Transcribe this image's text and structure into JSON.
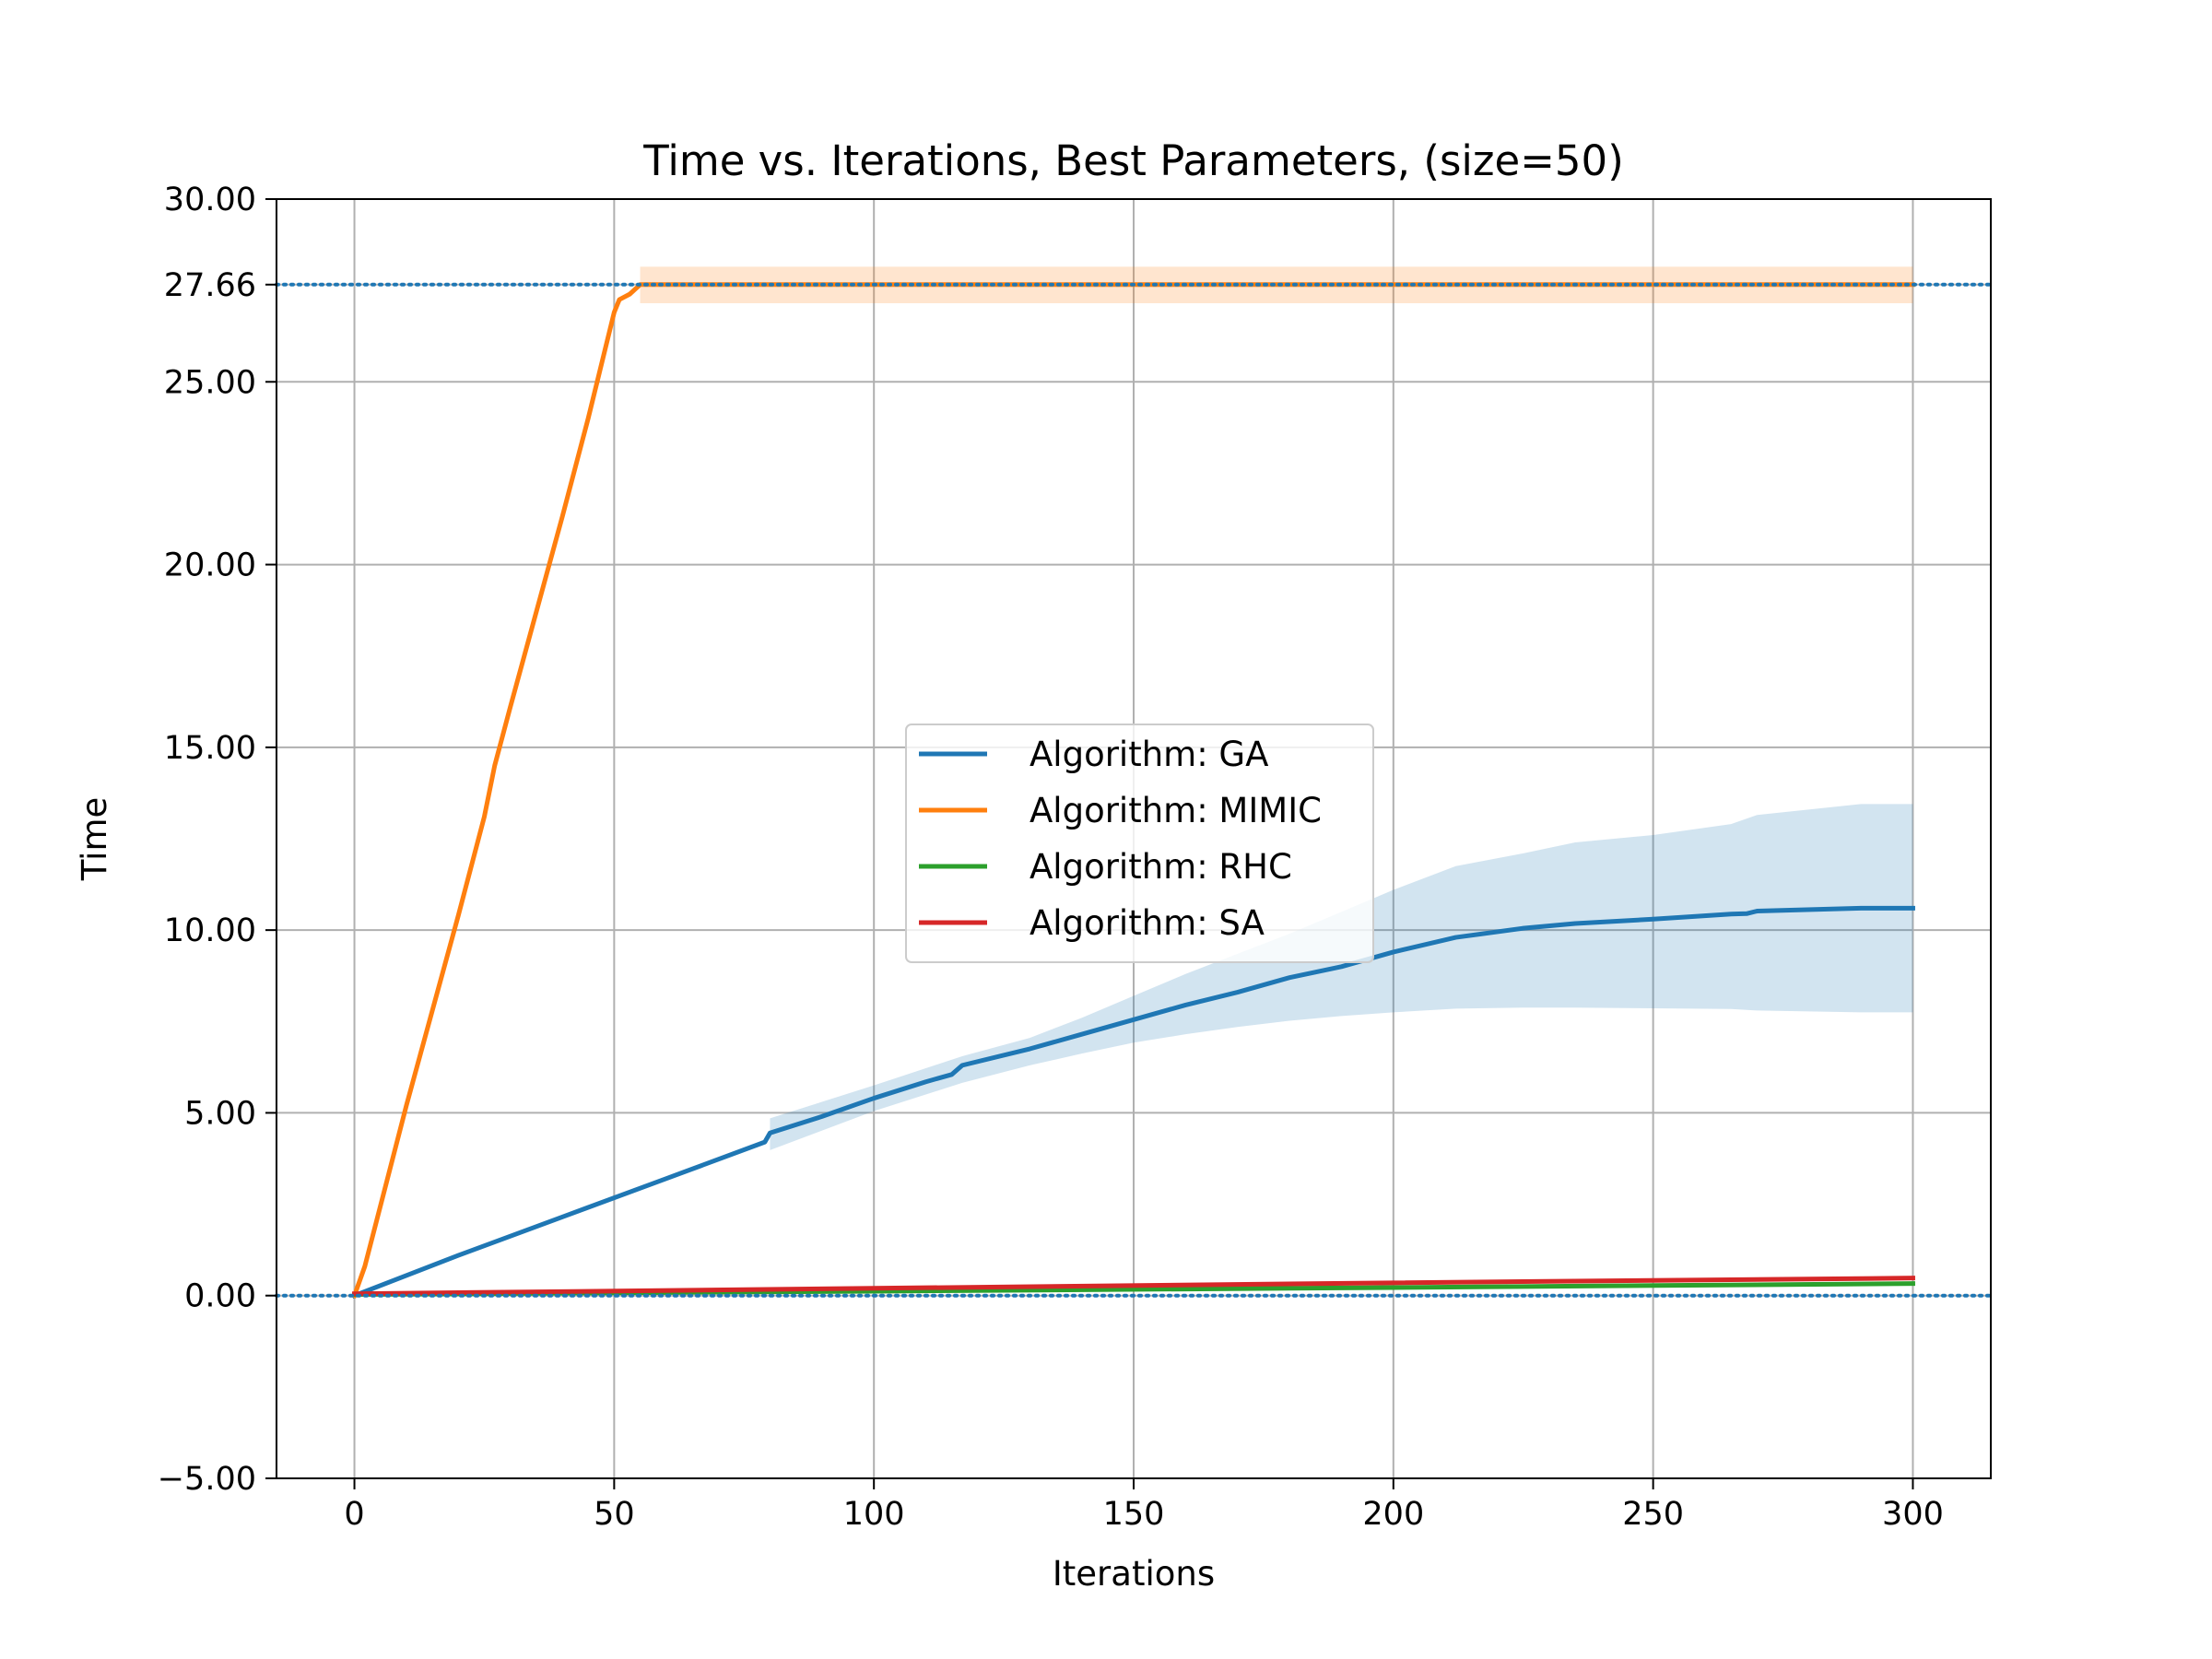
{
  "chart_data": {
    "type": "line",
    "title": "Time vs. Iterations, Best Parameters, (size=50)",
    "xlabel": "Iterations",
    "ylabel": "Time",
    "xlim": [
      -15,
      315
    ],
    "ylim": [
      -5,
      30
    ],
    "x_ticks": [
      0,
      50,
      100,
      150,
      200,
      250,
      300
    ],
    "y_ticks": [
      -5.0,
      0.0,
      5.0,
      10.0,
      15.0,
      20.0,
      25.0,
      27.66,
      30.0
    ],
    "y_tick_labels": [
      "−5.00",
      "0.00",
      "5.00",
      "10.00",
      "15.00",
      "20.00",
      "25.00",
      "27.66",
      "30.00"
    ],
    "grid": true,
    "legend_position": "center",
    "reference_lines": [
      {
        "y": 27.66,
        "style": "dotted",
        "color": "#1f77b4"
      },
      {
        "y": 0.0,
        "style": "dotted",
        "color": "#1f77b4"
      }
    ],
    "series": [
      {
        "name": "Algorithm: GA",
        "color": "#1f77b4",
        "x": [
          0,
          20,
          40,
          60,
          79,
          80,
          90,
          100,
          110,
          115,
          117,
          130,
          140,
          150,
          160,
          170,
          180,
          190,
          200,
          212,
          225,
          235,
          250,
          265,
          268,
          270,
          290,
          300
        ],
        "y": [
          0.0,
          1.1,
          2.15,
          3.2,
          4.2,
          4.45,
          4.9,
          5.4,
          5.85,
          6.05,
          6.3,
          6.75,
          7.15,
          7.55,
          7.95,
          8.3,
          8.7,
          9.0,
          9.4,
          9.8,
          10.05,
          10.18,
          10.3,
          10.44,
          10.45,
          10.52,
          10.6,
          10.6
        ],
        "band_x": [
          80,
          100,
          117,
          130,
          140,
          150,
          160,
          170,
          180,
          190,
          200,
          212,
          225,
          235,
          250,
          265,
          270,
          290,
          300
        ],
        "band_upper": [
          4.85,
          5.75,
          6.55,
          7.05,
          7.6,
          8.2,
          8.8,
          9.35,
          9.9,
          10.5,
          11.1,
          11.75,
          12.1,
          12.4,
          12.6,
          12.9,
          13.15,
          13.45,
          13.45
        ],
        "band_lower": [
          3.98,
          5.05,
          5.82,
          6.3,
          6.62,
          6.92,
          7.15,
          7.35,
          7.52,
          7.65,
          7.75,
          7.85,
          7.88,
          7.88,
          7.86,
          7.84,
          7.8,
          7.75,
          7.75
        ]
      },
      {
        "name": "Algorithm: MIMIC",
        "color": "#ff7f0e",
        "x": [
          0,
          2,
          10,
          20,
          25,
          27,
          30,
          40,
          45,
          50,
          51,
          53,
          55,
          300
        ],
        "y": [
          0.0,
          0.8,
          5.2,
          10.4,
          13.1,
          14.5,
          16.1,
          21.3,
          24.0,
          26.9,
          27.25,
          27.4,
          27.66,
          27.66
        ],
        "band_x": [
          55,
          300
        ],
        "band_upper": [
          28.15,
          28.15
        ],
        "band_lower": [
          27.15,
          27.15
        ]
      },
      {
        "name": "Algorithm: RHC",
        "color": "#2ca02c",
        "x": [
          0,
          100,
          200,
          300
        ],
        "y": [
          0.03,
          0.12,
          0.22,
          0.33
        ]
      },
      {
        "name": "Algorithm: SA",
        "color": "#d62728",
        "x": [
          0,
          100,
          200,
          300
        ],
        "y": [
          0.05,
          0.2,
          0.35,
          0.48
        ]
      }
    ]
  }
}
